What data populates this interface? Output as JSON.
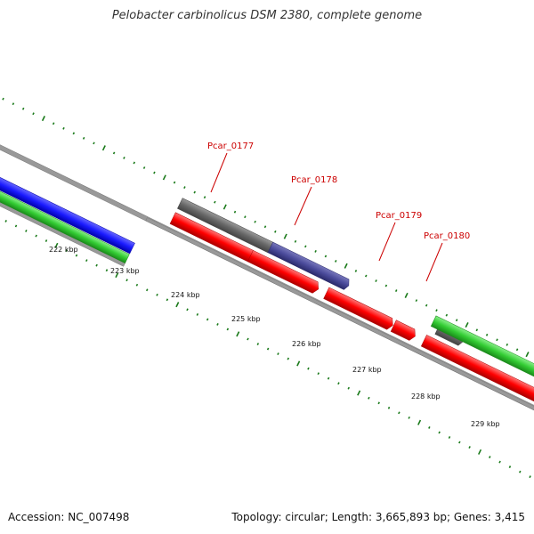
{
  "title": "Pelobacter carbinolicus DSM 2380, complete genome",
  "accession": "Accession: NC_007498",
  "stats": "Topology: circular; Length: 3,665,893 bp; Genes: 3,415",
  "colors": {
    "forward_cds_other": "#1a1aff",
    "forward_gray": "#666666",
    "forward_purple": "#4a4a9a",
    "reverse_red": "#ff0000",
    "green": "#33cc33",
    "backbone": "#999999",
    "tick": "#1a7a1a",
    "gene_label": "#cc0000"
  },
  "gene_labels": [
    "Pcar_0177",
    "Pcar_0178",
    "Pcar_0179",
    "Pcar_0180"
  ],
  "tick_labels": [
    "222 kbp",
    "223 kbp",
    "224 kbp",
    "225 kbp",
    "226 kbp",
    "227 kbp",
    "228 kbp",
    "229 kbp"
  ]
}
